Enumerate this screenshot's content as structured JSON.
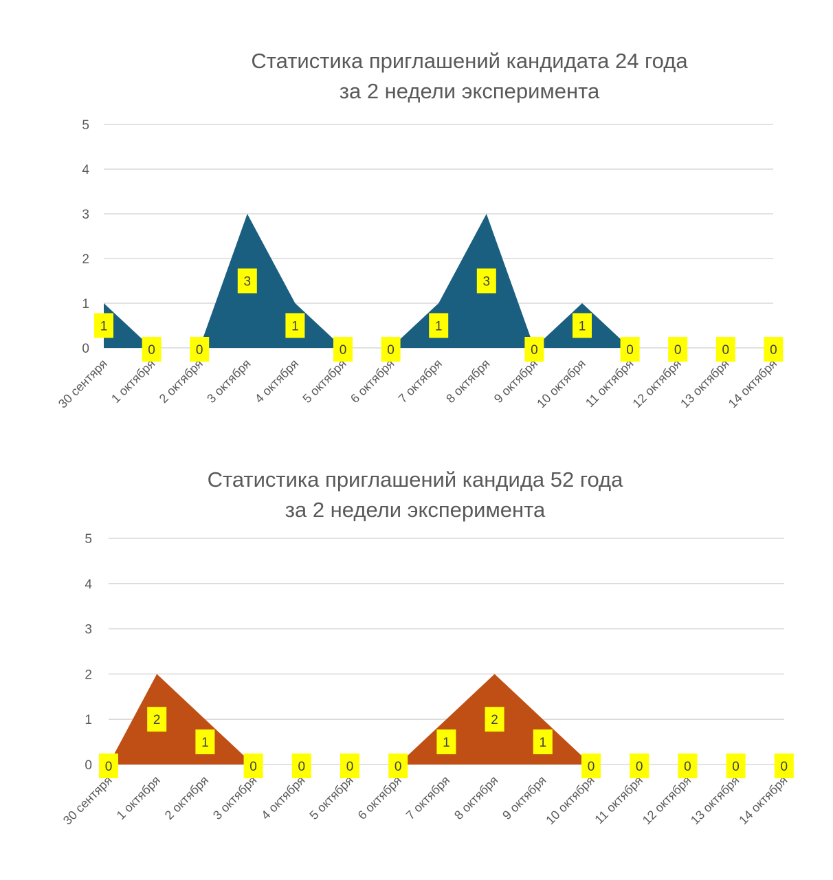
{
  "chart_data": [
    {
      "type": "area",
      "title": [
        "Статистика приглашений кандидата 24 года",
        "за 2 недели эксперимента"
      ],
      "categories": [
        "30 сентяря",
        "1 октября",
        "2 октября",
        "3 октября",
        "4 октября",
        "5 октября",
        "6 октября",
        "7 октября",
        "8 октября",
        "9 октября",
        "10 октября",
        "11 октября",
        "12 октября",
        "13 октября",
        "14 октября"
      ],
      "values": [
        1,
        0,
        0,
        3,
        1,
        0,
        0,
        1,
        3,
        0,
        1,
        0,
        0,
        0,
        0
      ],
      "ylim": [
        0,
        5
      ],
      "yticks": [
        "0",
        "1",
        "2",
        "3",
        "4",
        "5"
      ],
      "grid": true,
      "data_labels": true,
      "color": "#1a5e80",
      "label_bg": "#ffff00"
    },
    {
      "type": "area",
      "title": [
        "Статистика приглашений кандида 52 года",
        "за 2 недели эксперимента"
      ],
      "categories": [
        "30 сентяря",
        "1 октября",
        "2 октября",
        "3 октября",
        "4 октября",
        "5 октября",
        "6 октября",
        "7 октября",
        "8 октября",
        "9 октября",
        "10 октября",
        "11 октября",
        "12 октября",
        "13 октября",
        "14 октября"
      ],
      "values": [
        0,
        2,
        1,
        0,
        0,
        0,
        0,
        1,
        2,
        1,
        0,
        0,
        0,
        0,
        0
      ],
      "ylim": [
        0,
        5
      ],
      "yticks": [
        "0",
        "1",
        "2",
        "3",
        "4",
        "5"
      ],
      "grid": true,
      "data_labels": true,
      "color": "#c04f15",
      "label_bg": "#ffff00"
    }
  ]
}
